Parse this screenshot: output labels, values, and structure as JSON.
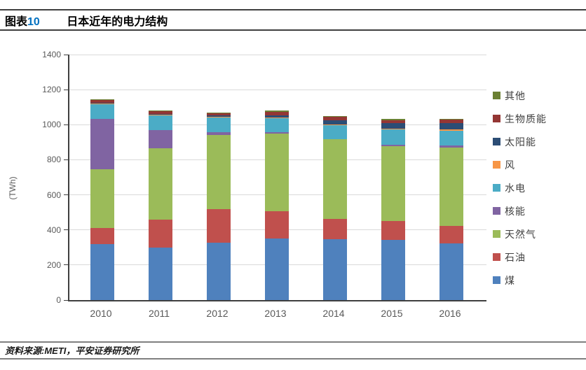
{
  "header": {
    "tag": "图表",
    "number": "10",
    "title": "日本近年的电力结构",
    "accent_color": "#0070C0"
  },
  "footer": {
    "source": "资料来源:METI，平安证券研究所"
  },
  "chart_data": {
    "type": "bar",
    "stacked": true,
    "title": "",
    "xlabel": "",
    "ylabel": "(TWh)",
    "ylim": [
      0,
      1400
    ],
    "ytick_interval": 200,
    "yticks": [
      0,
      200,
      400,
      600,
      800,
      1000,
      1200,
      1400
    ],
    "grid": "horizontal",
    "legend_position": "right",
    "categories": [
      "2010",
      "2011",
      "2012",
      "2013",
      "2014",
      "2015",
      "2016"
    ],
    "series": [
      {
        "name": "煤",
        "color": "#4F81BD",
        "values": [
          318,
          300,
          328,
          350,
          349,
          345,
          325
        ]
      },
      {
        "name": "石油",
        "color": "#C0504D",
        "values": [
          93,
          157,
          192,
          158,
          112,
          105,
          98
        ]
      },
      {
        "name": "天然气",
        "color": "#9BBB59",
        "values": [
          333,
          408,
          420,
          440,
          455,
          426,
          446
        ]
      },
      {
        "name": "核能",
        "color": "#8064A2",
        "values": [
          288,
          104,
          16,
          9,
          0,
          9,
          13
        ]
      },
      {
        "name": "水电",
        "color": "#4BACC6",
        "values": [
          84,
          85,
          84,
          80,
          82,
          87,
          84
        ]
      },
      {
        "name": "风",
        "color": "#F79646",
        "values": [
          4,
          4,
          5,
          5,
          5,
          5,
          6
        ]
      },
      {
        "name": "太阳能",
        "color": "#2C4D75",
        "values": [
          4,
          5,
          7,
          12,
          22,
          32,
          38
        ]
      },
      {
        "name": "生物质能",
        "color": "#943634",
        "values": [
          16,
          14,
          14,
          18,
          20,
          15,
          20
        ]
      },
      {
        "name": "其他",
        "color": "#6B8033",
        "values": [
          5,
          5,
          5,
          8,
          6,
          9,
          4
        ]
      }
    ],
    "legend_order_top_to_bottom": [
      "其他",
      "生物质能",
      "太阳能",
      "风",
      "水电",
      "核能",
      "天然气",
      "石油",
      "煤"
    ]
  },
  "style": {
    "gridline_color": "#D9D9D9",
    "axis_color": "#3f3f3f",
    "tick_label_color": "#595959",
    "legend_text_color": "#404040"
  }
}
